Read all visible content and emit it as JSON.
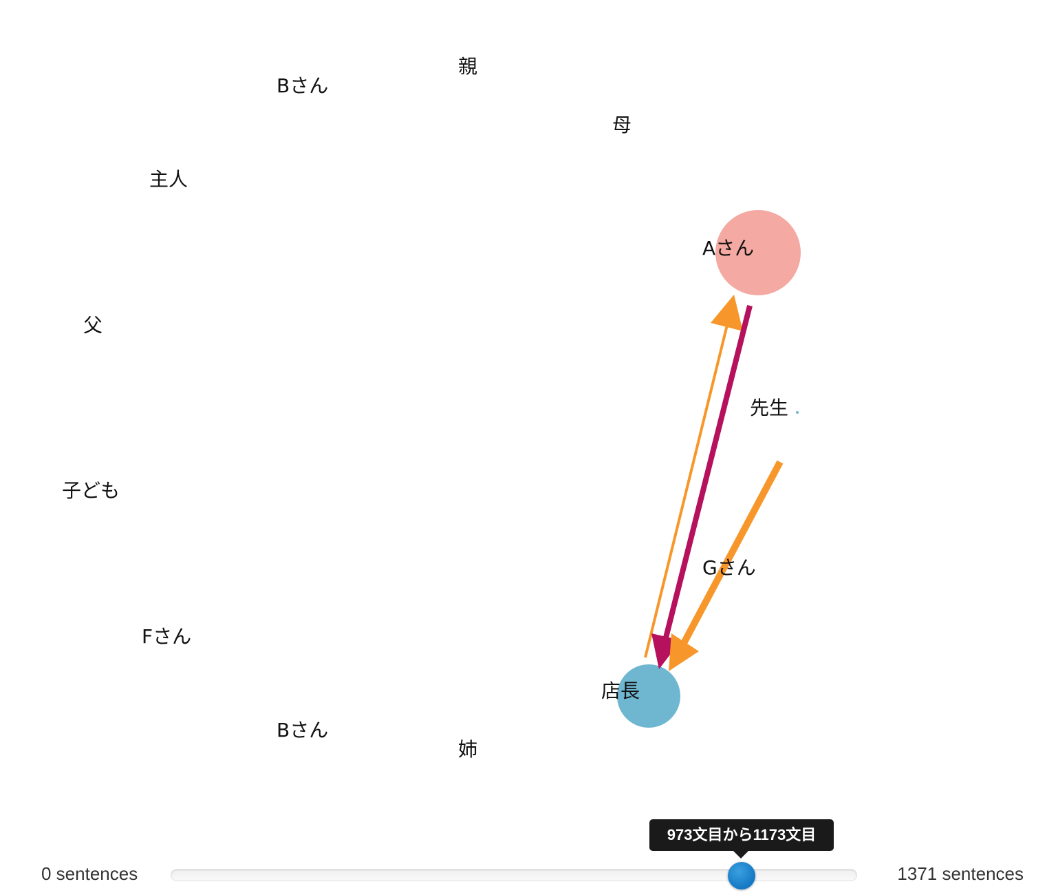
{
  "nodes": [
    {
      "id": "oya",
      "label": "親"
    },
    {
      "id": "b-san-top",
      "label": "Bさん"
    },
    {
      "id": "haha",
      "label": "母"
    },
    {
      "id": "shujin",
      "label": "主人"
    },
    {
      "id": "a-san",
      "label": "Aさん"
    },
    {
      "id": "chichi",
      "label": "父"
    },
    {
      "id": "sensei",
      "label": "先生"
    },
    {
      "id": "kodomo",
      "label": "子ども"
    },
    {
      "id": "g-san",
      "label": "Gさん"
    },
    {
      "id": "f-san",
      "label": "Fさん"
    },
    {
      "id": "tencho",
      "label": "店長"
    },
    {
      "id": "b-san-bottom",
      "label": "Bさん"
    },
    {
      "id": "ane",
      "label": "姉"
    }
  ],
  "edges": [
    {
      "from": "tencho",
      "to": "a-san",
      "color": "#f7972b"
    },
    {
      "from": "a-san",
      "to": "tencho",
      "color": "#b5115c"
    },
    {
      "from": "sensei",
      "to": "tencho",
      "color": "#f7972b"
    }
  ],
  "colors": {
    "a-san": "#f4aaa3",
    "tencho": "#6fb7d1",
    "edge_orange": "#f7972b",
    "edge_magenta": "#b5115c",
    "slider_handle": "#1a86d0"
  },
  "slider": {
    "min_label": "0 sentences",
    "max_label": "1371 sentences",
    "tooltip": "973文目から1173文目"
  }
}
